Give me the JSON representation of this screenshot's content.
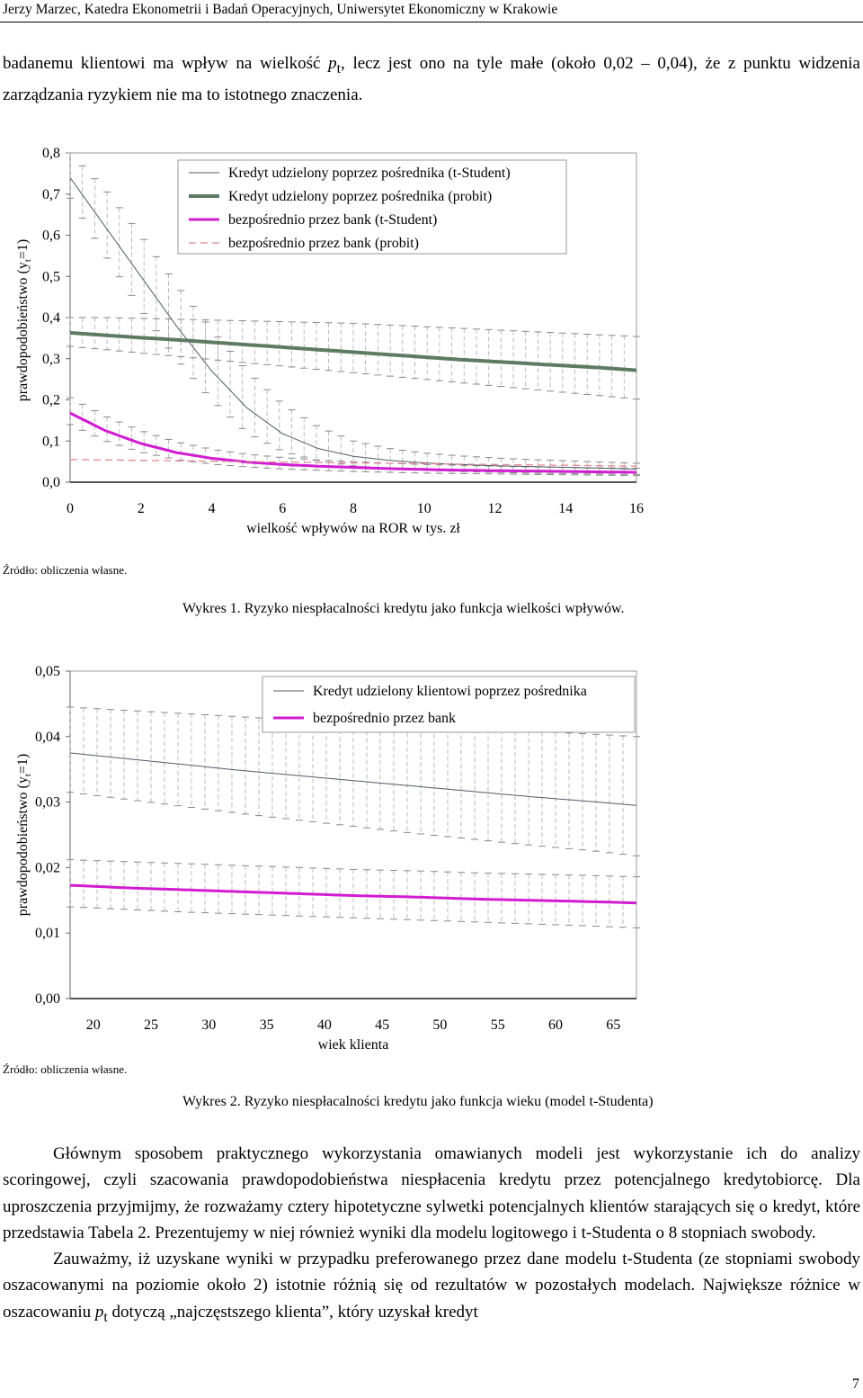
{
  "header": "Jerzy Marzec, Katedra Ekonometrii i Badań Operacyjnych, Uniwersytet Ekonomiczny w Krakowie",
  "intro": {
    "part1": "badanemu klientowi ma wpływ na wielkość ",
    "var": "p",
    "sub": "t",
    "part2": ", lecz jest ono na tyle małe (około 0,02 – 0,04), że z punktu widzenia zarządzania ryzykiem nie ma to istotnego znaczenia."
  },
  "figure1": {
    "source": "Źródło: obliczenia własne.",
    "caption": "Wykres 1. Ryzyko niespłacalności kredytu jako funkcja wielkości wpływów."
  },
  "figure2": {
    "source": "Źródło: obliczenia własne.",
    "caption": "Wykres 2. Ryzyko niespłacalności kredytu jako funkcja wieku (model t-Studenta)"
  },
  "chart_data": [
    {
      "type": "line",
      "ylabel_main": "prawdopodobieństwo (y",
      "ylabel_sub": "t",
      "ylabel_end": "=1)",
      "xlabel": "wielkość wpływów na ROR w tys. zł",
      "xlim": [
        0,
        16
      ],
      "ylim": [
        0,
        0.8
      ],
      "xticks": [
        "0",
        "2",
        "4",
        "6",
        "8",
        "10",
        "12",
        "14",
        "16"
      ],
      "yticks": [
        "0,0",
        "0,1",
        "0,2",
        "0,3",
        "0,4",
        "0,5",
        "0,6",
        "0,7",
        "0,8"
      ],
      "legend_position": "top-right",
      "x": [
        0,
        1,
        2,
        3,
        4,
        5,
        6,
        7,
        8,
        9,
        10,
        11,
        12,
        13,
        14,
        15,
        16
      ],
      "series": [
        {
          "name": "Kredyt udzielony poprzez pośrednika (t-Student)",
          "color": "#555a66",
          "style": "thin",
          "values": [
            0.74,
            0.62,
            0.5,
            0.38,
            0.27,
            0.18,
            0.118,
            0.082,
            0.063,
            0.053,
            0.047,
            0.043,
            0.04,
            0.038,
            0.036,
            0.034,
            0.032
          ],
          "band_upper": [
            0.8,
            0.71,
            0.6,
            0.48,
            0.37,
            0.27,
            0.19,
            0.135,
            0.1,
            0.082,
            0.071,
            0.064,
            0.059,
            0.055,
            0.052,
            0.049,
            0.046
          ],
          "band_lower": [
            0.69,
            0.55,
            0.42,
            0.3,
            0.2,
            0.12,
            0.075,
            0.052,
            0.04,
            0.033,
            0.029,
            0.026,
            0.024,
            0.022,
            0.021,
            0.02,
            0.019
          ]
        },
        {
          "name": "Kredyt udzielony poprzez pośrednika (probit)",
          "color": "#5e7a63",
          "style": "thick",
          "values": [
            0.363,
            0.357,
            0.351,
            0.346,
            0.34,
            0.334,
            0.328,
            0.322,
            0.316,
            0.31,
            0.304,
            0.298,
            0.293,
            0.288,
            0.283,
            0.278,
            0.272
          ],
          "band_upper": [
            0.4,
            0.4,
            0.398,
            0.396,
            0.394,
            0.392,
            0.39,
            0.388,
            0.386,
            0.382,
            0.378,
            0.374,
            0.37,
            0.366,
            0.362,
            0.358,
            0.354
          ],
          "band_lower": [
            0.33,
            0.322,
            0.314,
            0.306,
            0.298,
            0.29,
            0.282,
            0.274,
            0.266,
            0.258,
            0.25,
            0.242,
            0.234,
            0.226,
            0.218,
            0.21,
            0.202
          ]
        },
        {
          "name": "bezpośrednio przez bank (t-Student)",
          "color": "#d11cd1",
          "style": "medium",
          "values": [
            0.168,
            0.125,
            0.094,
            0.072,
            0.058,
            0.049,
            0.043,
            0.039,
            0.036,
            0.033,
            0.031,
            0.029,
            0.028,
            0.027,
            0.026,
            0.025,
            0.024
          ],
          "band_upper": [
            0.205,
            0.16,
            0.125,
            0.098,
            0.08,
            0.068,
            0.06,
            0.054,
            0.05,
            0.046,
            0.043,
            0.041,
            0.039,
            0.037,
            0.036,
            0.035,
            0.034
          ],
          "band_lower": [
            0.14,
            0.1,
            0.073,
            0.055,
            0.044,
            0.037,
            0.032,
            0.029,
            0.026,
            0.024,
            0.022,
            0.021,
            0.02,
            0.019,
            0.018,
            0.017,
            0.016
          ]
        },
        {
          "name": "bezpośrednio przez bank (probit)",
          "color": "#e08890",
          "style": "dashed",
          "values": [
            0.055,
            0.054,
            0.053,
            0.052,
            0.051,
            0.05,
            0.049,
            0.048,
            0.047,
            0.046,
            0.045,
            0.044,
            0.043,
            0.042,
            0.041,
            0.04,
            0.039
          ]
        }
      ]
    },
    {
      "type": "line",
      "ylabel_main": "prawdopodobieństwo (y",
      "ylabel_sub": "t",
      "ylabel_end": "=1)",
      "xlabel": "wiek klienta",
      "xlim": [
        18,
        67
      ],
      "ylim": [
        0,
        0.05
      ],
      "xticks": [
        "20",
        "25",
        "30",
        "35",
        "40",
        "45",
        "50",
        "55",
        "60",
        "65"
      ],
      "xtick_values": [
        20,
        25,
        30,
        35,
        40,
        45,
        50,
        55,
        60,
        65
      ],
      "yticks": [
        "0,00",
        "0,01",
        "0,02",
        "0,03",
        "0,04",
        "0,05"
      ],
      "legend_position": "top-right",
      "x": [
        18,
        23,
        28,
        33,
        38,
        43,
        48,
        53,
        58,
        63,
        67
      ],
      "series": [
        {
          "name": "Kredyt udzielony klientowi poprzez pośrednika",
          "color": "#555a66",
          "style": "thin",
          "values": [
            0.0375,
            0.0366,
            0.0357,
            0.0348,
            0.034,
            0.0332,
            0.0324,
            0.0316,
            0.0308,
            0.0301,
            0.0295
          ],
          "band_upper": [
            0.0445,
            0.044,
            0.0435,
            0.043,
            0.0425,
            0.042,
            0.0416,
            0.0412,
            0.0408,
            0.0404,
            0.04
          ],
          "band_lower": [
            0.0315,
            0.0304,
            0.0293,
            0.0282,
            0.0272,
            0.0262,
            0.0252,
            0.0243,
            0.0234,
            0.0226,
            0.0218
          ]
        },
        {
          "name": "bezpośrednio przez bank",
          "color": "#d11cd1",
          "style": "medium",
          "values": [
            0.0173,
            0.0169,
            0.0166,
            0.0163,
            0.016,
            0.0157,
            0.0155,
            0.0152,
            0.015,
            0.0148,
            0.0146
          ],
          "band_upper": [
            0.0212,
            0.0209,
            0.0206,
            0.0203,
            0.02,
            0.0197,
            0.0195,
            0.0192,
            0.019,
            0.0188,
            0.0186
          ],
          "band_lower": [
            0.014,
            0.0136,
            0.0132,
            0.0129,
            0.0126,
            0.0123,
            0.012,
            0.0117,
            0.0114,
            0.0111,
            0.0108
          ]
        }
      ]
    }
  ],
  "body": {
    "p1": "Głównym sposobem praktycznego wykorzystania omawianych modeli jest wykorzystanie ich do analizy scoringowej, czyli szacowania prawdopodobieństwa niespłacenia kredytu przez potencjalnego kredytobiorcę. Dla uproszczenia przyjmijmy, że rozważamy cztery hipotetyczne sylwetki potencjalnych klientów starających się o kredyt, które przedstawia Tabela 2. Prezentujemy w niej również wyniki dla modelu logitowego i t-Studenta o 8 stopniach swobody.",
    "p2a": "Zauważmy, iż uzyskane wyniki w przypadku preferowanego przez dane modelu t-Studenta (ze stopniami swobody oszacowanymi na poziomie około 2) istotnie różnią się od rezultatów w pozostałych modelach. Największe różnice w oszacowaniu ",
    "p2var": "p",
    "p2sub": "t",
    "p2b": " dotyczą „najczęstszego klienta”, który uzyskał kredyt"
  },
  "page_number": "7"
}
